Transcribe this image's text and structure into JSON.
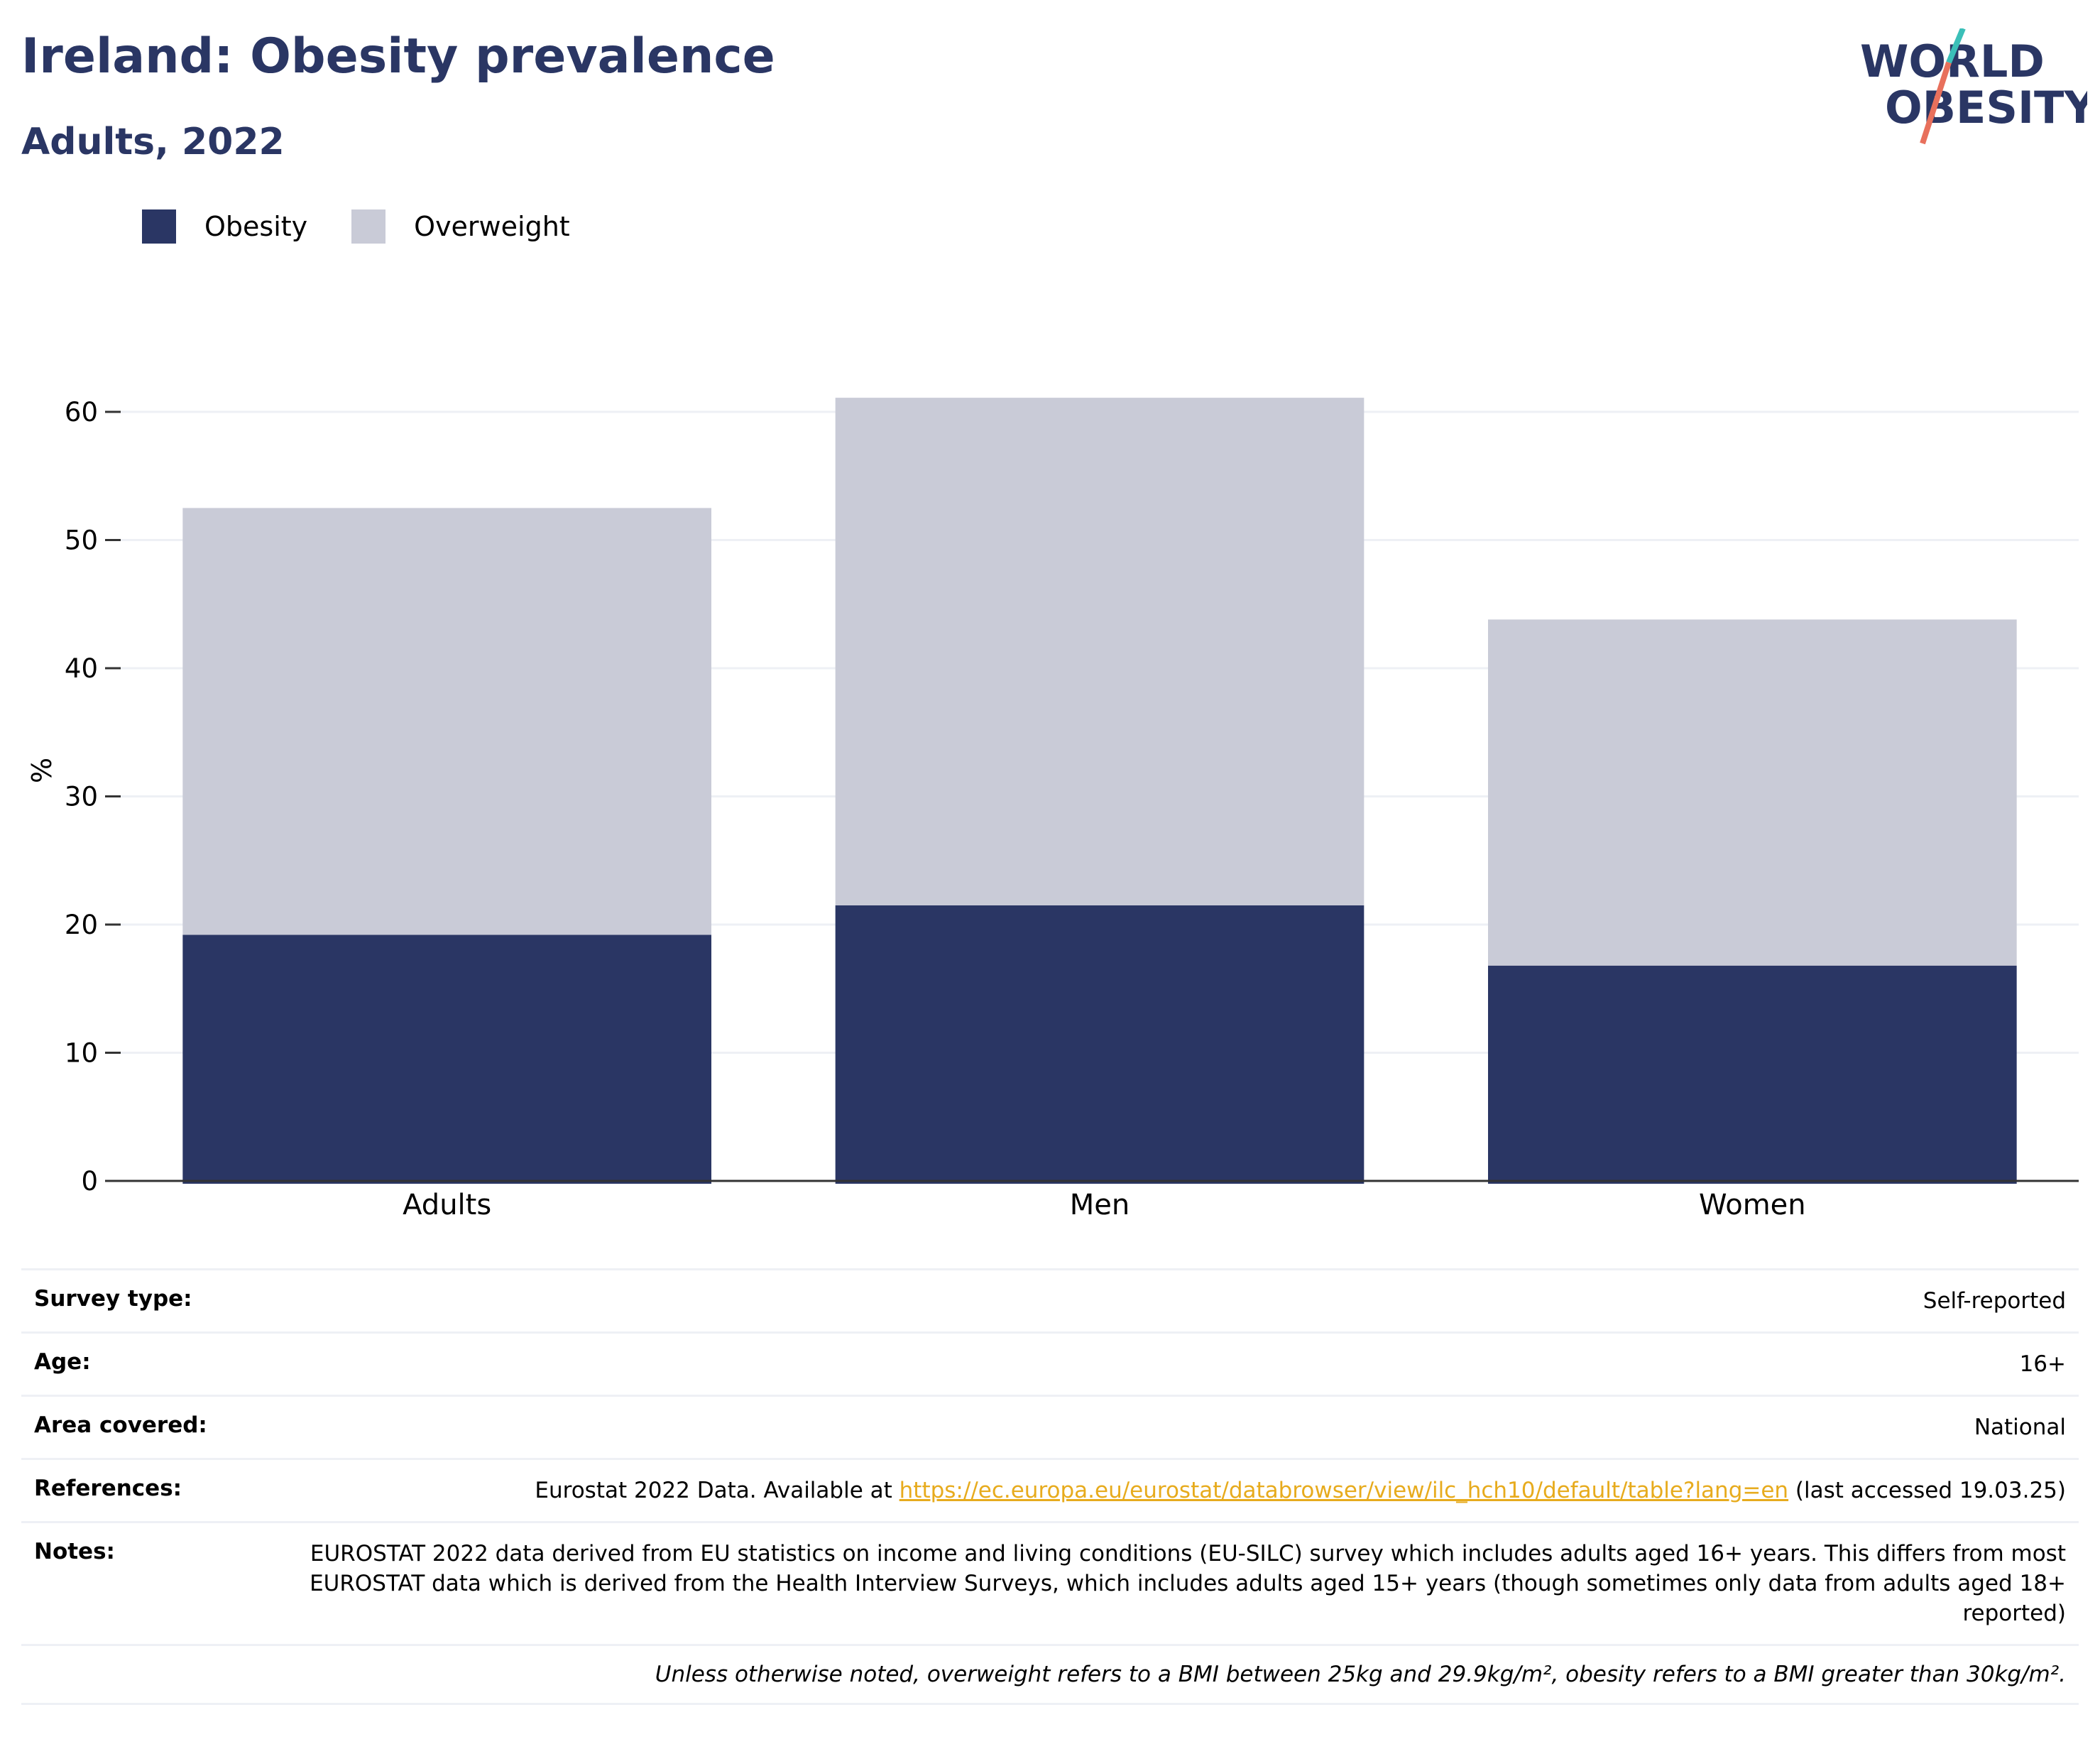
{
  "header": {
    "title": "Ireland: Obesity prevalence",
    "subtitle": "Adults, 2022",
    "logo_line1": "WORLD",
    "logo_line2": "OBESITY"
  },
  "legend": [
    {
      "label": "Obesity",
      "color": "#2a3664"
    },
    {
      "label": "Overweight",
      "color": "#c9cbd7"
    }
  ],
  "chart_data": {
    "type": "bar",
    "stacked": true,
    "categories": [
      "Adults",
      "Men",
      "Women"
    ],
    "series": [
      {
        "name": "Obesity",
        "color": "#2a3664",
        "values": [
          19.2,
          21.5,
          16.8
        ]
      },
      {
        "name": "Overweight",
        "color": "#c9cbd7",
        "values": [
          33.3,
          39.6,
          27.0
        ]
      }
    ],
    "ylabel": "%",
    "ylim": [
      0,
      65
    ],
    "yticks": [
      0,
      10,
      20,
      30,
      40,
      50,
      60
    ],
    "grid": true,
    "legend_position": "top-left"
  },
  "info": {
    "survey_label": "Survey type:",
    "survey_value": "Self-reported",
    "age_label": "Age:",
    "age_value": "16+",
    "area_label": "Area covered:",
    "area_value": "National",
    "references_label": "References:",
    "references_prefix": "Eurostat 2022 Data. Available at ",
    "references_link": "https://ec.europa.eu/eurostat/databrowser/view/ilc_hch10/default/table?lang=en",
    "references_suffix": " (last accessed 19.03.25)",
    "notes_label": "Notes:",
    "notes_value": "EUROSTAT 2022 data derived from EU statistics on income and living conditions (EU-SILC) survey which includes adults aged 16+ years. This differs from most EUROSTAT data which is derived from the Health Interview Surveys, which includes adults aged 15+ years (though sometimes only data from adults aged 18+ reported)",
    "footnote": "Unless otherwise noted, overweight refers to a BMI between 25kg and 29.9kg/m², obesity refers to a BMI greater than 30kg/m²."
  }
}
